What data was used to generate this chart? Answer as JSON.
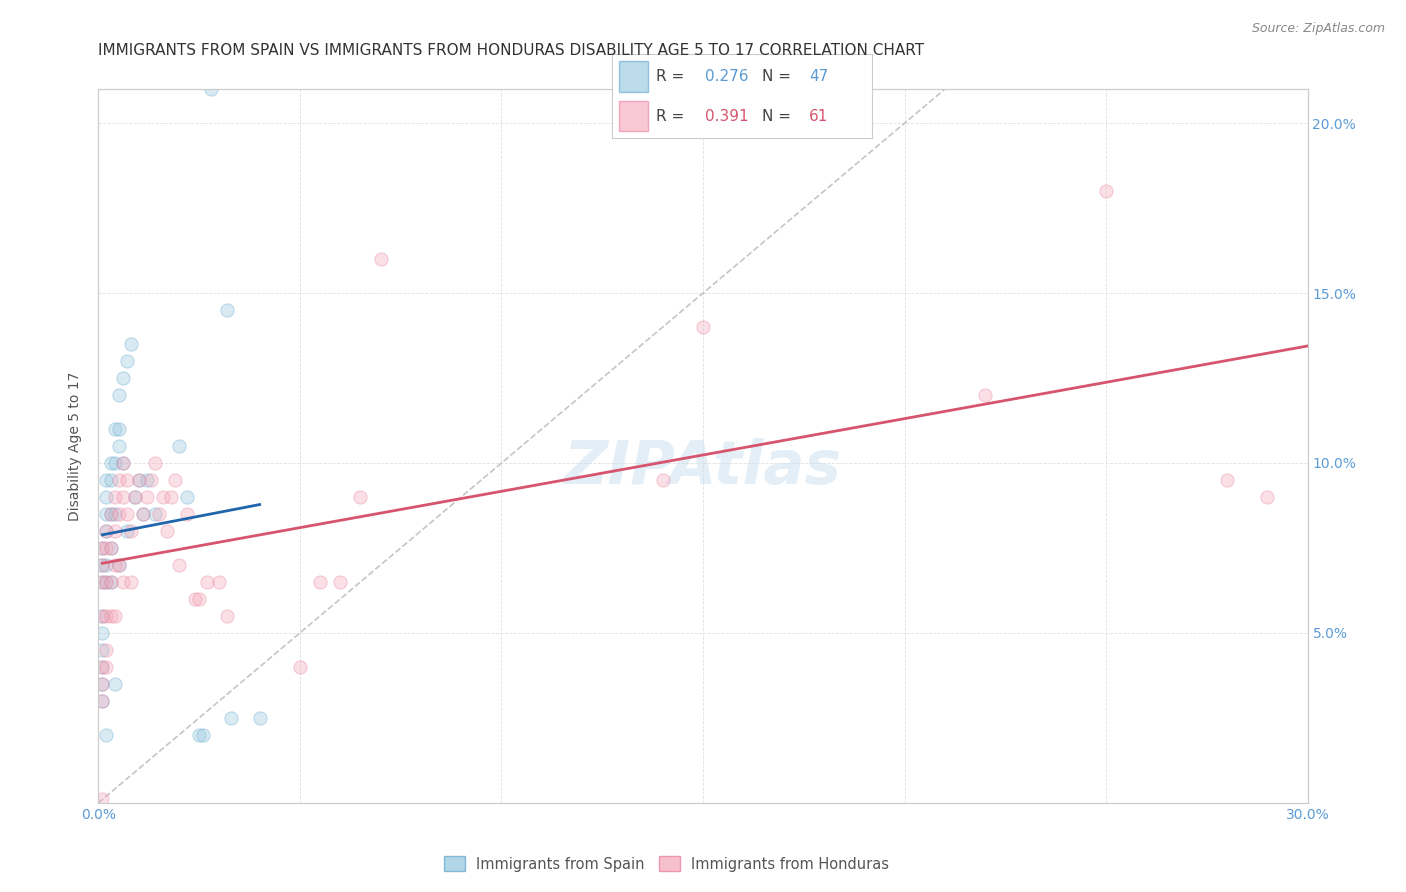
{
  "title": "IMMIGRANTS FROM SPAIN VS IMMIGRANTS FROM HONDURAS DISABILITY AGE 5 TO 17 CORRELATION CHART",
  "source": "Source: ZipAtlas.com",
  "ylabel": "Disability Age 5 to 17",
  "xlim": [
    0.0,
    0.3
  ],
  "ylim": [
    0.0,
    0.21
  ],
  "xtick_vals": [
    0.0,
    0.05,
    0.1,
    0.15,
    0.2,
    0.25,
    0.3
  ],
  "ytick_vals": [
    0.0,
    0.05,
    0.1,
    0.15,
    0.2
  ],
  "xtick_labels": [
    "0.0%",
    "",
    "",
    "",
    "",
    "",
    "30.0%"
  ],
  "ytick_labels_right": [
    "",
    "5.0%",
    "10.0%",
    "15.0%",
    "20.0%"
  ],
  "spain_color": "#92c5de",
  "honduras_color": "#f4a6b8",
  "spain_edge_color": "#5ba3cb",
  "honduras_edge_color": "#e87a9a",
  "spain_line_color": "#2166ac",
  "honduras_line_color": "#d6546e",
  "ref_line_color": "#bbbbbb",
  "background_color": "#ffffff",
  "grid_color": "#e0e0e0",
  "title_color": "#333333",
  "tick_color": "#5b9bd5",
  "legend_r_spain": "0.276",
  "legend_n_spain": "47",
  "legend_r_honduras": "0.391",
  "legend_n_honduras": "61",
  "spain_x": [
    0.001,
    0.001,
    0.001,
    0.001,
    0.001,
    0.001,
    0.001,
    0.001,
    0.001,
    0.002,
    0.002,
    0.002,
    0.002,
    0.002,
    0.002,
    0.002,
    0.003,
    0.003,
    0.003,
    0.003,
    0.003,
    0.004,
    0.004,
    0.004,
    0.004,
    0.005,
    0.005,
    0.005,
    0.005,
    0.006,
    0.006,
    0.007,
    0.007,
    0.008,
    0.009,
    0.01,
    0.011,
    0.012,
    0.014,
    0.02,
    0.022,
    0.025,
    0.026,
    0.028,
    0.032,
    0.033,
    0.04
  ],
  "spain_y": [
    0.075,
    0.07,
    0.065,
    0.055,
    0.05,
    0.045,
    0.04,
    0.035,
    0.03,
    0.095,
    0.09,
    0.085,
    0.08,
    0.07,
    0.065,
    0.02,
    0.1,
    0.095,
    0.085,
    0.075,
    0.065,
    0.11,
    0.1,
    0.085,
    0.035,
    0.12,
    0.11,
    0.105,
    0.07,
    0.125,
    0.1,
    0.13,
    0.08,
    0.135,
    0.09,
    0.095,
    0.085,
    0.095,
    0.085,
    0.105,
    0.09,
    0.02,
    0.02,
    0.21,
    0.145,
    0.025,
    0.025
  ],
  "honduras_x": [
    0.001,
    0.001,
    0.001,
    0.001,
    0.001,
    0.001,
    0.001,
    0.001,
    0.002,
    0.002,
    0.002,
    0.002,
    0.002,
    0.002,
    0.003,
    0.003,
    0.003,
    0.003,
    0.004,
    0.004,
    0.004,
    0.004,
    0.005,
    0.005,
    0.005,
    0.006,
    0.006,
    0.006,
    0.007,
    0.007,
    0.008,
    0.008,
    0.009,
    0.01,
    0.011,
    0.012,
    0.013,
    0.014,
    0.015,
    0.016,
    0.017,
    0.018,
    0.019,
    0.02,
    0.022,
    0.024,
    0.025,
    0.027,
    0.03,
    0.032,
    0.05,
    0.055,
    0.06,
    0.065,
    0.07,
    0.14,
    0.15,
    0.22,
    0.25,
    0.28,
    0.29
  ],
  "honduras_y": [
    0.075,
    0.07,
    0.065,
    0.055,
    0.04,
    0.035,
    0.03,
    0.001,
    0.08,
    0.075,
    0.065,
    0.055,
    0.045,
    0.04,
    0.085,
    0.075,
    0.065,
    0.055,
    0.09,
    0.08,
    0.07,
    0.055,
    0.095,
    0.085,
    0.07,
    0.1,
    0.09,
    0.065,
    0.095,
    0.085,
    0.08,
    0.065,
    0.09,
    0.095,
    0.085,
    0.09,
    0.095,
    0.1,
    0.085,
    0.09,
    0.08,
    0.09,
    0.095,
    0.07,
    0.085,
    0.06,
    0.06,
    0.065,
    0.065,
    0.055,
    0.04,
    0.065,
    0.065,
    0.09,
    0.16,
    0.095,
    0.14,
    0.12,
    0.18,
    0.095,
    0.09
  ],
  "title_fontsize": 11,
  "marker_size": 90,
  "marker_alpha": 0.35,
  "marker_linewidth": 0.8
}
